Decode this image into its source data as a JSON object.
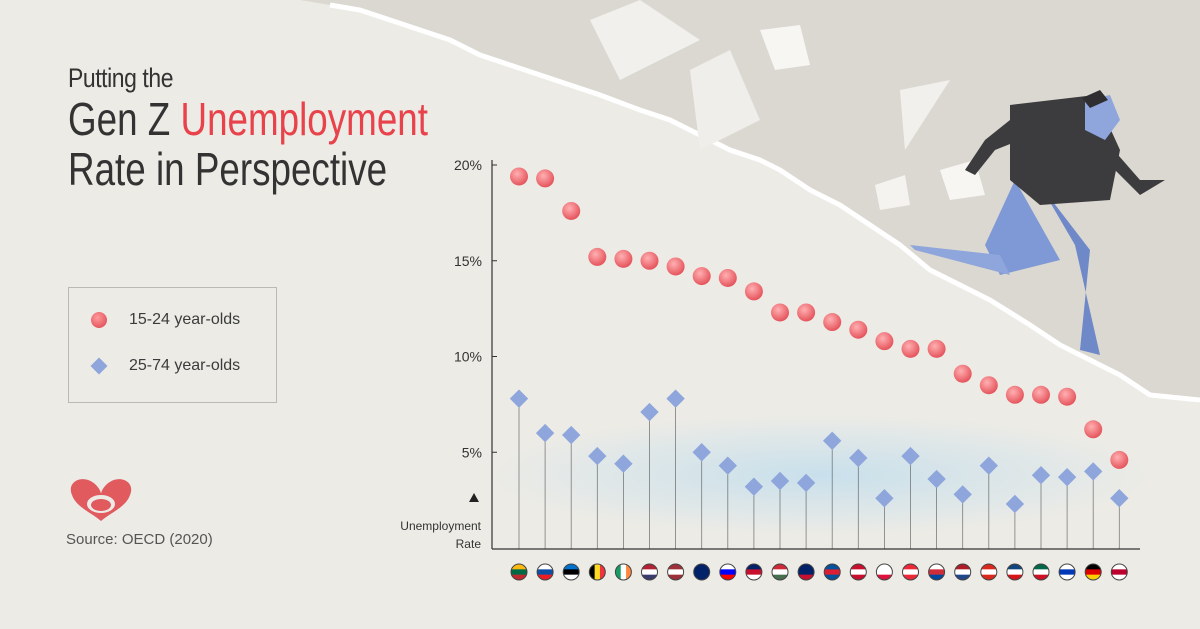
{
  "title": {
    "line1": "Putting the",
    "line2_part1": "Gen Z",
    "line2_accent": "Unemployment",
    "line3": "Rate in Perspective"
  },
  "legend": {
    "youth_label": "15-24 year-olds",
    "adult_label": "25-74 year-olds"
  },
  "source": "Source: OECD (2020)",
  "colors": {
    "accent_red": "#e8424b",
    "youth_marker": "#e55a62",
    "adult_marker": "#8ea6dc",
    "paper": "#ecebe6"
  },
  "chart_data": {
    "type": "dot-plot",
    "title": "",
    "ylabel": "Unemployment Rate",
    "ylim": [
      0,
      21
    ],
    "yticks": [
      5,
      10,
      15,
      20
    ],
    "ytick_labels": [
      "5%",
      "10%",
      "15%",
      "20%"
    ],
    "categories": [
      "Lithuania",
      "Slovakia",
      "Estonia",
      "Belgium",
      "Ireland",
      "United States",
      "Latvia",
      "Australia",
      "Slovenia",
      "United Kingdom",
      "Hungary",
      "New Zealand",
      "Iceland",
      "Denmark",
      "Poland",
      "Austria",
      "South Korea",
      "Netherlands",
      "Switzerland",
      "Czech Republic",
      "Mexico",
      "Israel",
      "Germany",
      "Japan"
    ],
    "flag_icons": [
      "flag-lithuania-icon",
      "flag-slovakia-icon",
      "flag-estonia-icon",
      "flag-belgium-icon",
      "flag-ireland-icon",
      "flag-usa-icon",
      "flag-latvia-icon",
      "flag-australia-icon",
      "flag-slovenia-icon",
      "flag-uk-icon",
      "flag-hungary-icon",
      "flag-new-zealand-icon",
      "flag-iceland-icon",
      "flag-denmark-icon",
      "flag-poland-icon",
      "flag-austria-icon",
      "flag-south-korea-icon",
      "flag-netherlands-icon",
      "flag-switzerland-icon",
      "flag-czech-republic-icon",
      "flag-mexico-icon",
      "flag-israel-icon",
      "flag-germany-icon",
      "flag-japan-icon"
    ],
    "series": [
      {
        "name": "15-24 year-olds",
        "values": [
          19.4,
          19.3,
          17.6,
          15.2,
          15.1,
          15.0,
          14.7,
          14.2,
          14.1,
          13.4,
          12.3,
          12.3,
          11.8,
          11.4,
          10.8,
          10.4,
          10.4,
          9.1,
          8.5,
          8.0,
          8.0,
          7.9,
          6.2,
          4.6
        ]
      },
      {
        "name": "25-74 year-olds",
        "values": [
          7.8,
          6.0,
          5.9,
          4.8,
          4.4,
          7.1,
          7.8,
          5.0,
          4.3,
          3.2,
          3.5,
          3.4,
          5.6,
          4.7,
          2.6,
          4.8,
          3.6,
          2.8,
          4.3,
          2.3,
          3.8,
          3.7,
          4.0,
          2.6
        ]
      }
    ]
  }
}
